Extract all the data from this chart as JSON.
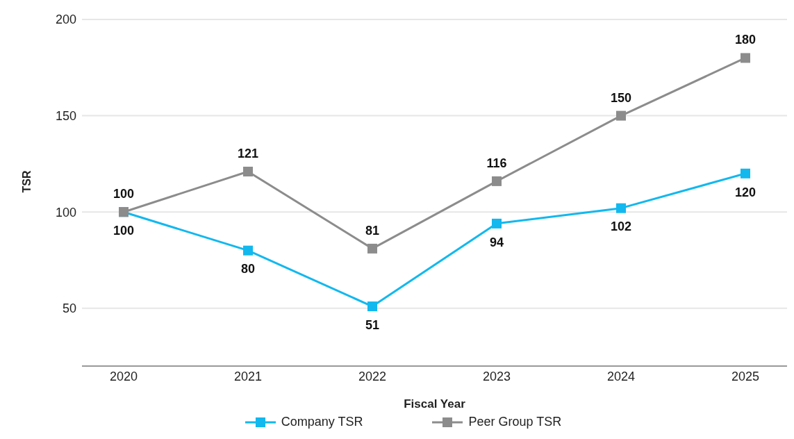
{
  "chart_data": {
    "type": "line",
    "xlabel": "Fiscal Year",
    "ylabel": "TSR",
    "categories": [
      "2020",
      "2021",
      "2022",
      "2023",
      "2024",
      "2025"
    ],
    "series": [
      {
        "name": "Company TSR",
        "color": "#12b8ee",
        "values": [
          100,
          80,
          51,
          94,
          102,
          120
        ]
      },
      {
        "name": "Peer Group TSR",
        "color": "#8c8c8c",
        "values": [
          100,
          121,
          81,
          116,
          150,
          180
        ]
      }
    ],
    "ylim": [
      20,
      200
    ],
    "yticks": [
      50,
      100,
      150,
      200
    ],
    "grid": "y",
    "legend": "bottom",
    "marker": "square",
    "line_style": "solid",
    "data_labels": true
  }
}
